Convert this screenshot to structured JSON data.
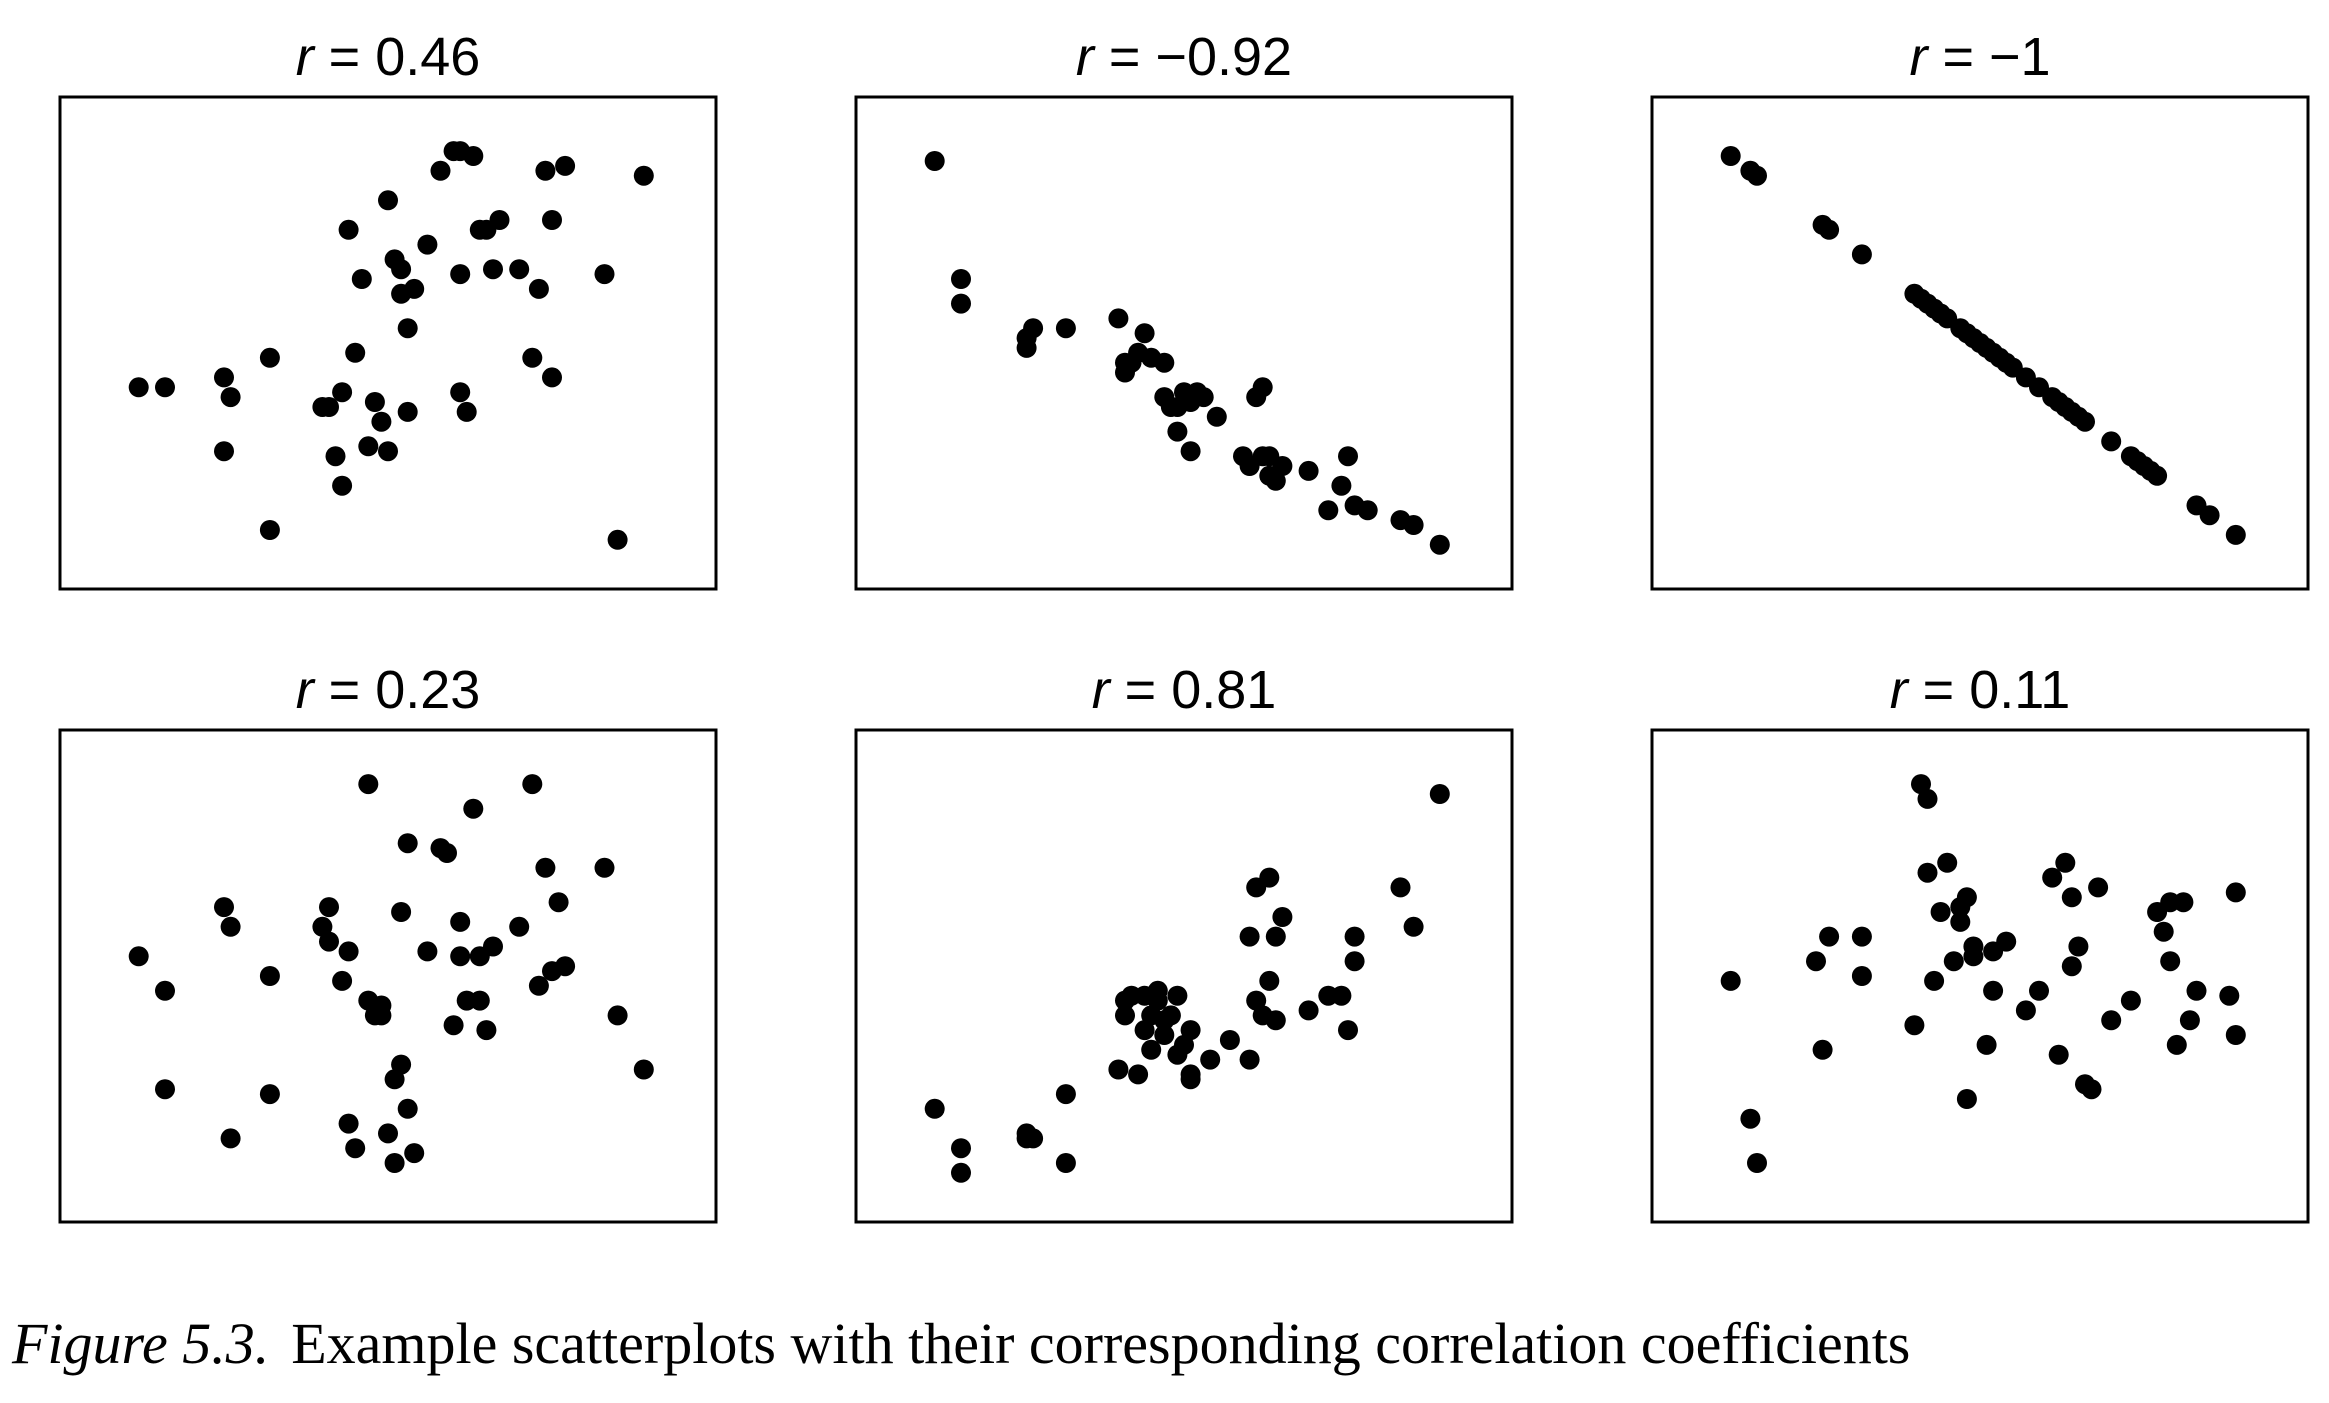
{
  "chart_data": [
    {
      "type": "scatter",
      "title_var": "r",
      "title_value": "0.46",
      "points": [
        [
          0.12,
          0.41
        ],
        [
          0.16,
          0.41
        ],
        [
          0.25,
          0.43
        ],
        [
          0.26,
          0.39
        ],
        [
          0.25,
          0.28
        ],
        [
          0.32,
          0.47
        ],
        [
          0.32,
          0.12
        ],
        [
          0.4,
          0.37
        ],
        [
          0.41,
          0.37
        ],
        [
          0.42,
          0.27
        ],
        [
          0.43,
          0.4
        ],
        [
          0.43,
          0.21
        ],
        [
          0.44,
          0.73
        ],
        [
          0.45,
          0.48
        ],
        [
          0.46,
          0.63
        ],
        [
          0.47,
          0.29
        ],
        [
          0.48,
          0.38
        ],
        [
          0.49,
          0.34
        ],
        [
          0.5,
          0.28
        ],
        [
          0.5,
          0.79
        ],
        [
          0.51,
          0.67
        ],
        [
          0.52,
          0.65
        ],
        [
          0.52,
          0.6
        ],
        [
          0.53,
          0.36
        ],
        [
          0.53,
          0.53
        ],
        [
          0.54,
          0.61
        ],
        [
          0.56,
          0.7
        ],
        [
          0.58,
          0.85
        ],
        [
          0.6,
          0.89
        ],
        [
          0.61,
          0.89
        ],
        [
          0.61,
          0.64
        ],
        [
          0.61,
          0.4
        ],
        [
          0.62,
          0.36
        ],
        [
          0.63,
          0.88
        ],
        [
          0.64,
          0.73
        ],
        [
          0.65,
          0.73
        ],
        [
          0.66,
          0.65
        ],
        [
          0.67,
          0.75
        ],
        [
          0.7,
          0.65
        ],
        [
          0.72,
          0.47
        ],
        [
          0.73,
          0.61
        ],
        [
          0.74,
          0.85
        ],
        [
          0.75,
          0.75
        ],
        [
          0.75,
          0.43
        ],
        [
          0.77,
          0.86
        ],
        [
          0.83,
          0.64
        ],
        [
          0.85,
          0.1
        ],
        [
          0.89,
          0.84
        ]
      ]
    },
    {
      "type": "scatter",
      "title_var": "r",
      "title_value": "−0.92",
      "points": [
        [
          0.12,
          0.87
        ],
        [
          0.16,
          0.63
        ],
        [
          0.16,
          0.58
        ],
        [
          0.26,
          0.51
        ],
        [
          0.26,
          0.49
        ],
        [
          0.27,
          0.53
        ],
        [
          0.32,
          0.53
        ],
        [
          0.4,
          0.55
        ],
        [
          0.41,
          0.44
        ],
        [
          0.41,
          0.46
        ],
        [
          0.42,
          0.46
        ],
        [
          0.43,
          0.48
        ],
        [
          0.44,
          0.52
        ],
        [
          0.45,
          0.47
        ],
        [
          0.47,
          0.39
        ],
        [
          0.47,
          0.46
        ],
        [
          0.48,
          0.37
        ],
        [
          0.49,
          0.32
        ],
        [
          0.49,
          0.37
        ],
        [
          0.5,
          0.4
        ],
        [
          0.51,
          0.38
        ],
        [
          0.51,
          0.28
        ],
        [
          0.52,
          0.4
        ],
        [
          0.53,
          0.39
        ],
        [
          0.55,
          0.35
        ],
        [
          0.59,
          0.27
        ],
        [
          0.6,
          0.25
        ],
        [
          0.61,
          0.39
        ],
        [
          0.62,
          0.41
        ],
        [
          0.62,
          0.27
        ],
        [
          0.63,
          0.27
        ],
        [
          0.63,
          0.23
        ],
        [
          0.64,
          0.22
        ],
        [
          0.65,
          0.25
        ],
        [
          0.69,
          0.24
        ],
        [
          0.72,
          0.16
        ],
        [
          0.74,
          0.21
        ],
        [
          0.75,
          0.27
        ],
        [
          0.76,
          0.17
        ],
        [
          0.78,
          0.16
        ],
        [
          0.83,
          0.14
        ],
        [
          0.85,
          0.13
        ],
        [
          0.89,
          0.09
        ]
      ]
    },
    {
      "type": "scatter",
      "title_var": "r",
      "title_value": "−1",
      "points": [
        [
          0.12,
          0.88
        ],
        [
          0.15,
          0.85
        ],
        [
          0.16,
          0.84
        ],
        [
          0.26,
          0.74
        ],
        [
          0.27,
          0.73
        ],
        [
          0.32,
          0.68
        ],
        [
          0.4,
          0.6
        ],
        [
          0.41,
          0.59
        ],
        [
          0.42,
          0.58
        ],
        [
          0.43,
          0.57
        ],
        [
          0.44,
          0.56
        ],
        [
          0.45,
          0.55
        ],
        [
          0.47,
          0.53
        ],
        [
          0.48,
          0.52
        ],
        [
          0.49,
          0.51
        ],
        [
          0.5,
          0.5
        ],
        [
          0.51,
          0.49
        ],
        [
          0.52,
          0.48
        ],
        [
          0.53,
          0.47
        ],
        [
          0.54,
          0.46
        ],
        [
          0.55,
          0.45
        ],
        [
          0.57,
          0.43
        ],
        [
          0.59,
          0.41
        ],
        [
          0.61,
          0.39
        ],
        [
          0.62,
          0.38
        ],
        [
          0.63,
          0.37
        ],
        [
          0.64,
          0.36
        ],
        [
          0.65,
          0.35
        ],
        [
          0.66,
          0.34
        ],
        [
          0.7,
          0.3
        ],
        [
          0.73,
          0.27
        ],
        [
          0.74,
          0.26
        ],
        [
          0.75,
          0.25
        ],
        [
          0.76,
          0.24
        ],
        [
          0.77,
          0.23
        ],
        [
          0.83,
          0.17
        ],
        [
          0.85,
          0.15
        ],
        [
          0.89,
          0.11
        ]
      ]
    },
    {
      "type": "scatter",
      "title_var": "r",
      "title_value": "0.23",
      "points": [
        [
          0.12,
          0.54
        ],
        [
          0.16,
          0.47
        ],
        [
          0.16,
          0.27
        ],
        [
          0.25,
          0.64
        ],
        [
          0.26,
          0.6
        ],
        [
          0.26,
          0.17
        ],
        [
          0.32,
          0.5
        ],
        [
          0.32,
          0.26
        ],
        [
          0.4,
          0.6
        ],
        [
          0.41,
          0.57
        ],
        [
          0.41,
          0.64
        ],
        [
          0.43,
          0.49
        ],
        [
          0.44,
          0.55
        ],
        [
          0.44,
          0.2
        ],
        [
          0.45,
          0.15
        ],
        [
          0.47,
          0.89
        ],
        [
          0.47,
          0.45
        ],
        [
          0.48,
          0.42
        ],
        [
          0.49,
          0.44
        ],
        [
          0.49,
          0.42
        ],
        [
          0.5,
          0.18
        ],
        [
          0.51,
          0.29
        ],
        [
          0.51,
          0.12
        ],
        [
          0.52,
          0.63
        ],
        [
          0.52,
          0.32
        ],
        [
          0.53,
          0.23
        ],
        [
          0.53,
          0.77
        ],
        [
          0.54,
          0.14
        ],
        [
          0.56,
          0.55
        ],
        [
          0.58,
          0.76
        ],
        [
          0.59,
          0.75
        ],
        [
          0.6,
          0.4
        ],
        [
          0.61,
          0.61
        ],
        [
          0.61,
          0.54
        ],
        [
          0.62,
          0.45
        ],
        [
          0.63,
          0.84
        ],
        [
          0.64,
          0.54
        ],
        [
          0.64,
          0.45
        ],
        [
          0.65,
          0.39
        ],
        [
          0.66,
          0.56
        ],
        [
          0.7,
          0.6
        ],
        [
          0.72,
          0.89
        ],
        [
          0.73,
          0.48
        ],
        [
          0.74,
          0.72
        ],
        [
          0.75,
          0.51
        ],
        [
          0.76,
          0.65
        ],
        [
          0.77,
          0.52
        ],
        [
          0.83,
          0.72
        ],
        [
          0.85,
          0.42
        ],
        [
          0.89,
          0.31
        ]
      ]
    },
    {
      "type": "scatter",
      "title_var": "r",
      "title_value": "0.81",
      "points": [
        [
          0.12,
          0.23
        ],
        [
          0.16,
          0.15
        ],
        [
          0.16,
          0.1
        ],
        [
          0.26,
          0.17
        ],
        [
          0.26,
          0.18
        ],
        [
          0.27,
          0.17
        ],
        [
          0.32,
          0.26
        ],
        [
          0.32,
          0.12
        ],
        [
          0.4,
          0.31
        ],
        [
          0.41,
          0.42
        ],
        [
          0.41,
          0.45
        ],
        [
          0.42,
          0.46
        ],
        [
          0.43,
          0.3
        ],
        [
          0.44,
          0.46
        ],
        [
          0.44,
          0.39
        ],
        [
          0.45,
          0.42
        ],
        [
          0.45,
          0.35
        ],
        [
          0.46,
          0.45
        ],
        [
          0.46,
          0.47
        ],
        [
          0.47,
          0.41
        ],
        [
          0.47,
          0.38
        ],
        [
          0.48,
          0.42
        ],
        [
          0.49,
          0.34
        ],
        [
          0.49,
          0.46
        ],
        [
          0.5,
          0.36
        ],
        [
          0.51,
          0.3
        ],
        [
          0.51,
          0.29
        ],
        [
          0.51,
          0.39
        ],
        [
          0.54,
          0.33
        ],
        [
          0.57,
          0.37
        ],
        [
          0.6,
          0.33
        ],
        [
          0.6,
          0.58
        ],
        [
          0.61,
          0.45
        ],
        [
          0.61,
          0.68
        ],
        [
          0.62,
          0.42
        ],
        [
          0.63,
          0.49
        ],
        [
          0.63,
          0.7
        ],
        [
          0.64,
          0.58
        ],
        [
          0.64,
          0.41
        ],
        [
          0.65,
          0.62
        ],
        [
          0.69,
          0.43
        ],
        [
          0.72,
          0.46
        ],
        [
          0.74,
          0.46
        ],
        [
          0.75,
          0.39
        ],
        [
          0.76,
          0.58
        ],
        [
          0.76,
          0.53
        ],
        [
          0.83,
          0.68
        ],
        [
          0.85,
          0.6
        ],
        [
          0.89,
          0.87
        ]
      ]
    },
    {
      "type": "scatter",
      "title_var": "r",
      "title_value": "0.11",
      "points": [
        [
          0.12,
          0.49
        ],
        [
          0.15,
          0.21
        ],
        [
          0.16,
          0.12
        ],
        [
          0.25,
          0.53
        ],
        [
          0.26,
          0.35
        ],
        [
          0.27,
          0.58
        ],
        [
          0.32,
          0.58
        ],
        [
          0.32,
          0.5
        ],
        [
          0.4,
          0.4
        ],
        [
          0.41,
          0.89
        ],
        [
          0.42,
          0.86
        ],
        [
          0.42,
          0.71
        ],
        [
          0.43,
          0.49
        ],
        [
          0.44,
          0.63
        ],
        [
          0.45,
          0.73
        ],
        [
          0.46,
          0.53
        ],
        [
          0.47,
          0.61
        ],
        [
          0.47,
          0.64
        ],
        [
          0.48,
          0.66
        ],
        [
          0.48,
          0.25
        ],
        [
          0.49,
          0.56
        ],
        [
          0.49,
          0.54
        ],
        [
          0.51,
          0.36
        ],
        [
          0.52,
          0.55
        ],
        [
          0.52,
          0.47
        ],
        [
          0.54,
          0.57
        ],
        [
          0.57,
          0.43
        ],
        [
          0.59,
          0.47
        ],
        [
          0.61,
          0.7
        ],
        [
          0.62,
          0.34
        ],
        [
          0.63,
          0.73
        ],
        [
          0.64,
          0.66
        ],
        [
          0.64,
          0.52
        ],
        [
          0.65,
          0.56
        ],
        [
          0.66,
          0.28
        ],
        [
          0.67,
          0.27
        ],
        [
          0.68,
          0.68
        ],
        [
          0.7,
          0.41
        ],
        [
          0.73,
          0.45
        ],
        [
          0.77,
          0.63
        ],
        [
          0.78,
          0.59
        ],
        [
          0.79,
          0.65
        ],
        [
          0.79,
          0.53
        ],
        [
          0.8,
          0.36
        ],
        [
          0.81,
          0.65
        ],
        [
          0.82,
          0.41
        ],
        [
          0.83,
          0.47
        ],
        [
          0.88,
          0.46
        ],
        [
          0.89,
          0.38
        ],
        [
          0.89,
          0.67
        ]
      ]
    }
  ],
  "caption": {
    "label": "Figure 5.3.",
    "text": "Example scatterplots with their corresponding correlation coefficients"
  }
}
